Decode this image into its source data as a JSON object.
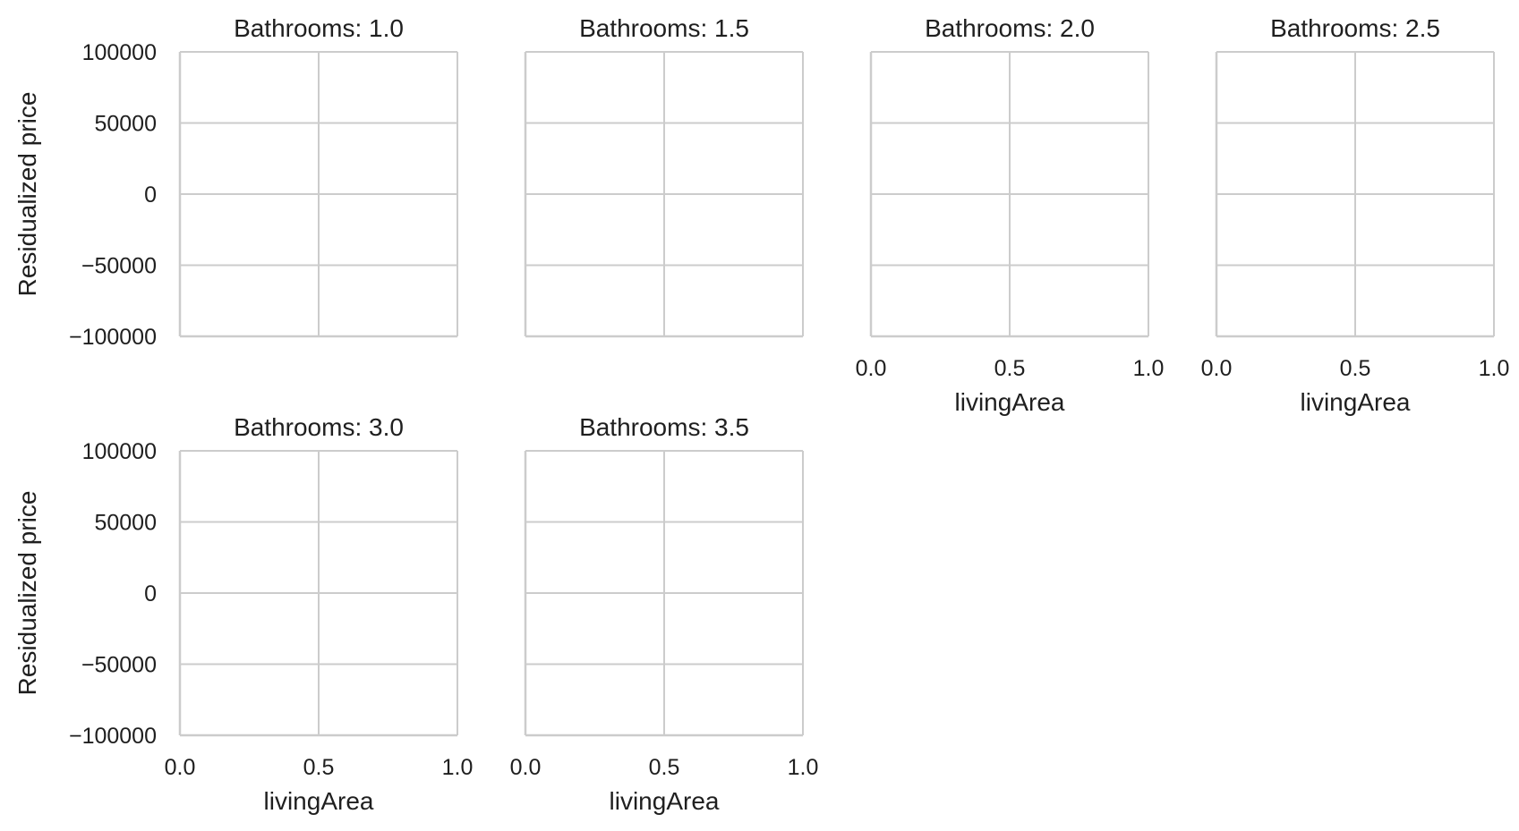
{
  "chart_data": {
    "type": "scatter",
    "layout": "facet-grid",
    "facet_variable": "Bathrooms",
    "xlabel": "livingArea",
    "ylabel": "Residualized price",
    "xlim": [
      0.0,
      1.0
    ],
    "ylim": [
      -100000,
      100000
    ],
    "x_ticks": [
      0.0,
      0.5,
      1.0
    ],
    "x_tick_labels": [
      "0.0",
      "0.5",
      "1.0"
    ],
    "y_ticks": [
      100000,
      50000,
      0,
      -50000,
      -100000
    ],
    "y_tick_labels": [
      "100000",
      "50000",
      "0",
      "−50000",
      "−100000"
    ],
    "grid": true,
    "panels": [
      {
        "title": "Bathrooms: 1.0",
        "row": 0,
        "col": 0,
        "show_x_ticks": false,
        "show_y_ticks": true,
        "x": [],
        "y": []
      },
      {
        "title": "Bathrooms: 1.5",
        "row": 0,
        "col": 1,
        "show_x_ticks": false,
        "show_y_ticks": false,
        "x": [],
        "y": []
      },
      {
        "title": "Bathrooms: 2.0",
        "row": 0,
        "col": 2,
        "show_x_ticks": true,
        "show_y_ticks": false,
        "x": [],
        "y": []
      },
      {
        "title": "Bathrooms: 2.5",
        "row": 0,
        "col": 3,
        "show_x_ticks": true,
        "show_y_ticks": false,
        "x": [],
        "y": []
      },
      {
        "title": "Bathrooms: 3.0",
        "row": 1,
        "col": 0,
        "show_x_ticks": true,
        "show_y_ticks": true,
        "x": [],
        "y": []
      },
      {
        "title": "Bathrooms: 3.5",
        "row": 1,
        "col": 1,
        "show_x_ticks": true,
        "show_y_ticks": false,
        "x": [],
        "y": []
      }
    ]
  },
  "colors": {
    "grid": "#cccccc",
    "spine": "#cccccc",
    "text": "#1f1f1f",
    "background": "#ffffff"
  }
}
